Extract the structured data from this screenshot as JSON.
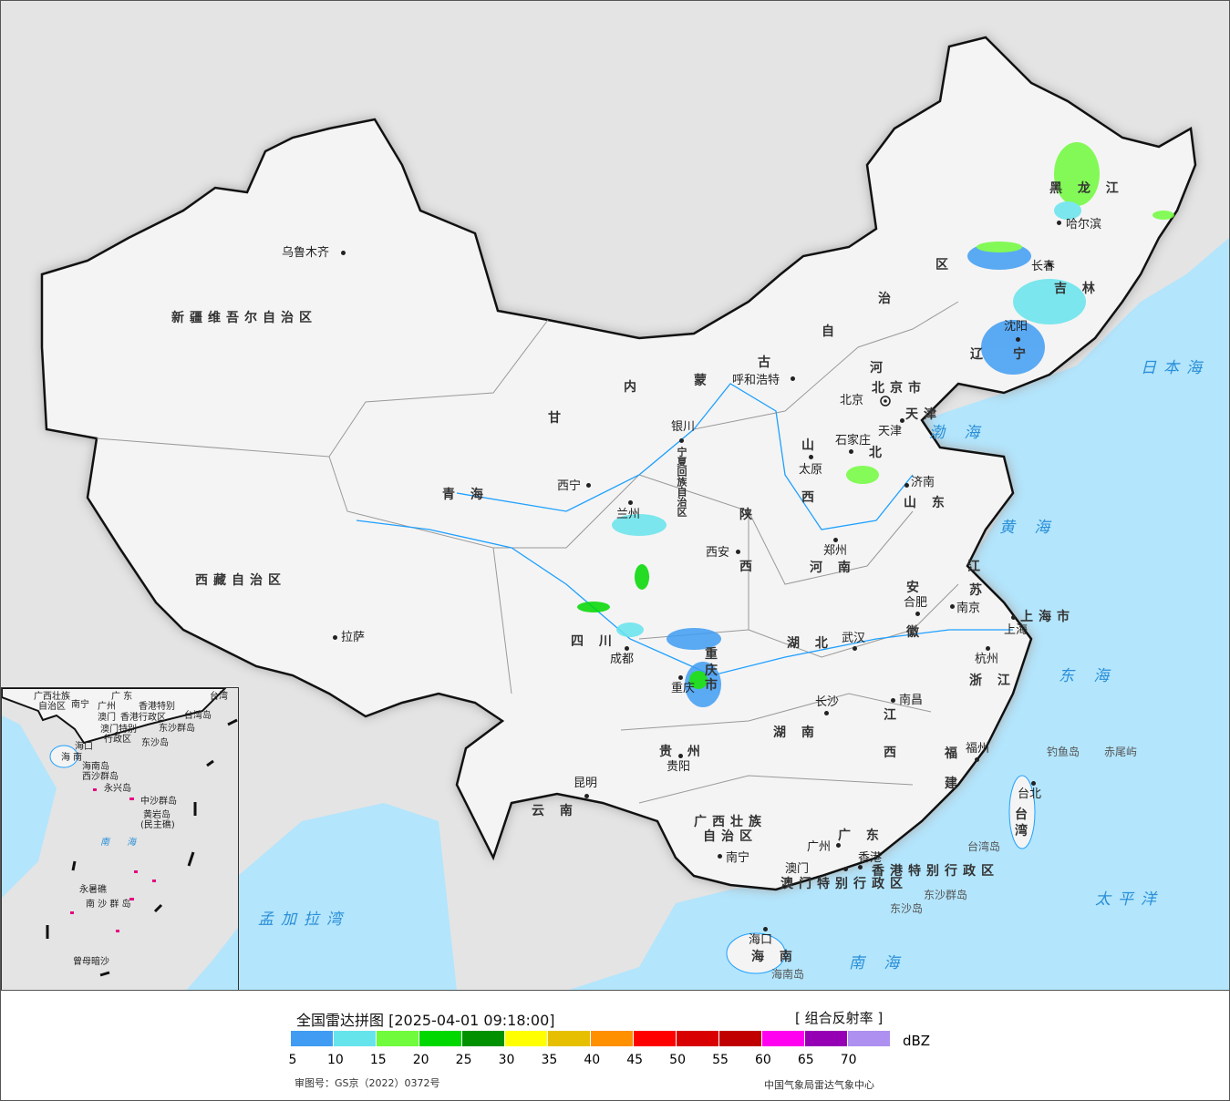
{
  "map": {
    "colors": {
      "ocean": "#b3e5fc",
      "china_land": "#f4f4f4",
      "foreign_land": "#e4e4e4",
      "river": "#1ea0ff",
      "border": "#111"
    },
    "cities": [
      "乌鲁木齐",
      "拉萨",
      "西宁",
      "兰州",
      "银川",
      "呼和浩特",
      "北京",
      "天津",
      "石家庄",
      "太原",
      "济南",
      "郑州",
      "西安",
      "成都",
      "重庆",
      "武汉",
      "合肥",
      "南京",
      "上海",
      "杭州",
      "长沙",
      "南昌",
      "福州",
      "贵阳",
      "昆明",
      "南宁",
      "广州",
      "澳门",
      "香港",
      "台北",
      "海口",
      "沈阳",
      "长春",
      "哈尔滨"
    ],
    "provinces": [
      "新疆维吾尔自治区",
      "西藏自治区",
      "青 海",
      "甘",
      "内",
      "蒙",
      "古",
      "自",
      "治",
      "区",
      "黑 龙 江",
      "吉 林",
      "辽",
      "宁",
      "河",
      "北",
      "山",
      "西",
      "山 东",
      "河 南",
      "陕",
      "西",
      "四 川",
      "湖 北",
      "湖 南",
      "安",
      "徽",
      "江",
      "苏",
      "浙 江",
      "江",
      "西",
      "福",
      "建",
      "贵 州",
      "云 南",
      "广西壮族",
      "自治区",
      "广 东",
      "海 南",
      "台",
      "湾",
      "上海市",
      "香港特别行政区",
      "澳门特别行政区",
      "重",
      "庆",
      "市",
      "宁夏回族自治区",
      "北京市",
      "天津"
    ],
    "seas": [
      "日本海",
      "渤 海",
      "黄 海",
      "东 海",
      "太平洋",
      "南 海",
      "孟加拉湾"
    ],
    "islands": [
      "钓鱼岛",
      "赤尾屿",
      "台湾岛",
      "东沙群岛",
      "东沙岛",
      "海南岛"
    ],
    "inset": [
      "广西壮族",
      "自治区",
      "南宁",
      "广 东",
      "广州",
      "澳门",
      "香港",
      "香港特别",
      "行政区",
      "澳门特别",
      "行政区",
      "台湾",
      "台湾岛",
      "东沙群岛",
      "东沙岛",
      "海口",
      "海 南",
      "海南岛",
      "西沙群岛",
      "永兴岛",
      "中沙群岛",
      "黄岩岛",
      "(民主礁)",
      "南 海",
      "永暑礁",
      "南 沙 群 岛",
      "曾母暗沙"
    ]
  },
  "legend": {
    "title": "全国雷达拼图 [2025-04-01 09:18:00]",
    "product": "[ 组合反射率 ]",
    "unit": "dBZ",
    "colors": [
      "#409cf3",
      "#66e4ec",
      "#70fb3c",
      "#00d800",
      "#009000",
      "#ffff00",
      "#e6c000",
      "#ff9000",
      "#ff0000",
      "#d80000",
      "#c00000",
      "#ff00f0",
      "#9600b4",
      "#ad90f0"
    ],
    "ticks": [
      "5",
      "10",
      "15",
      "20",
      "25",
      "30",
      "35",
      "40",
      "45",
      "50",
      "55",
      "60",
      "65",
      "70"
    ],
    "review_number": "审图号：GS京（2022）0372号",
    "agency": "中国气象局雷达气象中心"
  }
}
